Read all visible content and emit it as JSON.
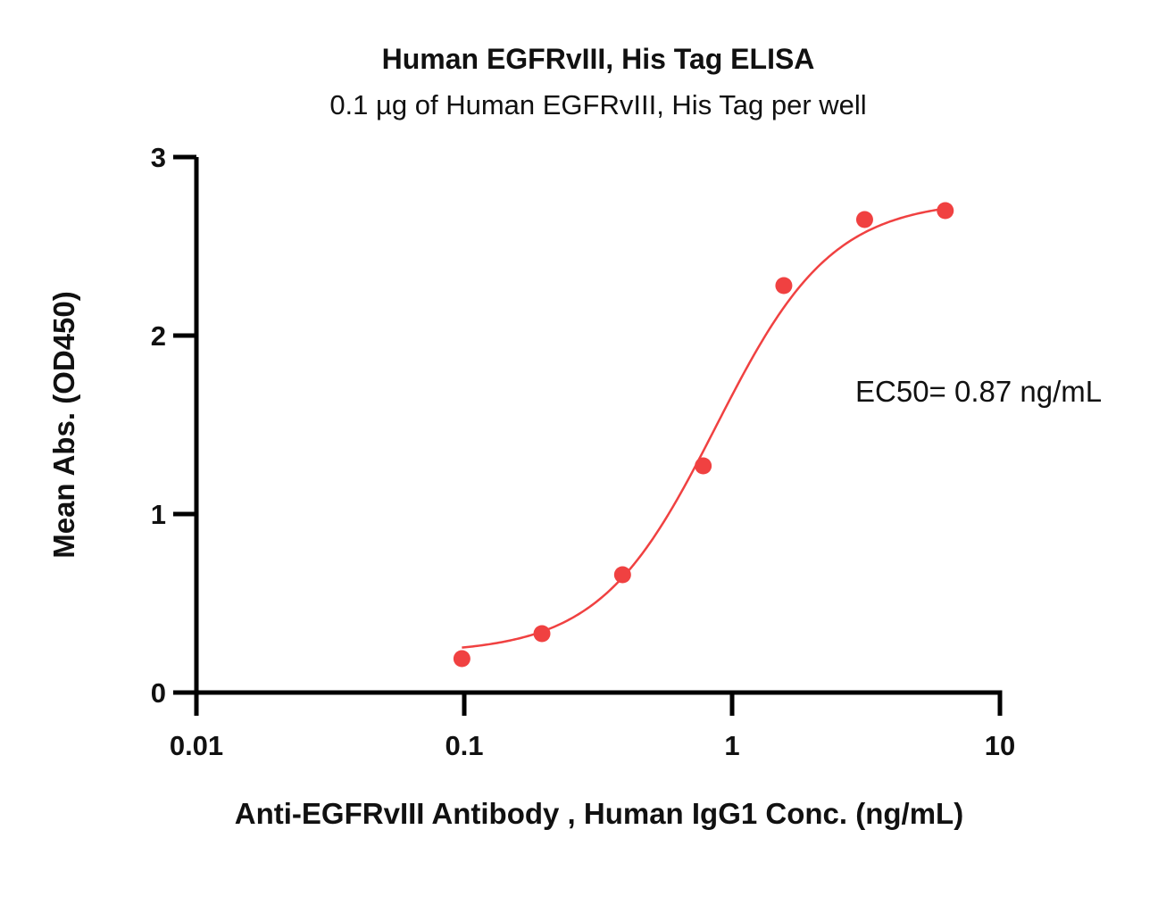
{
  "chart_data": {
    "type": "scatter",
    "title": "Human EGFRvIII, His Tag ELISA",
    "subtitle": "0.1 µg of Human EGFRvIII, His Tag per well",
    "xlabel": "Anti-EGFRvIII Antibody , Human IgG1 Conc. (ng/mL)",
    "ylabel": "Mean Abs. (OD450)",
    "x_scale": "log",
    "xlim": [
      0.01,
      10
    ],
    "ylim": [
      0,
      3
    ],
    "x_ticks": [
      0.01,
      0.1,
      1,
      10
    ],
    "x_tick_labels": [
      "0.01",
      "0.1",
      "1",
      "10"
    ],
    "y_ticks": [
      0,
      1,
      2,
      3
    ],
    "y_tick_labels": [
      "0",
      "1",
      "2",
      "3"
    ],
    "grid": false,
    "annotation": "EC50= 0.87 ng/mL",
    "color": "#f04141",
    "series": [
      {
        "x": [
          0.098,
          0.195,
          0.39,
          0.78,
          1.56,
          3.125,
          6.25
        ],
        "y": [
          0.19,
          0.33,
          0.66,
          1.27,
          2.28,
          2.65,
          2.7
        ],
        "fit": "four-parameter logistic"
      }
    ]
  }
}
